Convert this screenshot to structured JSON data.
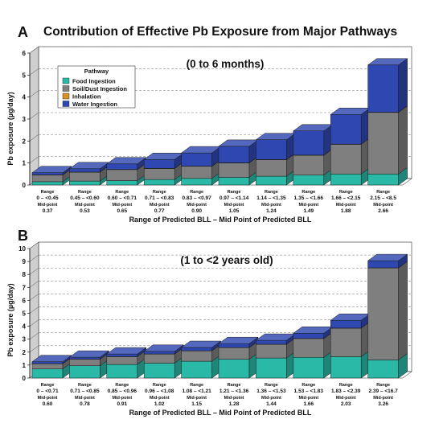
{
  "figure": {
    "title": "Contribution of Effective Pb Exposure from Major Pathways",
    "colors": {
      "food": "#2ab9a7",
      "soil": "#7f7f7f",
      "inhalation": "#d8902a",
      "water": "#2f47b0",
      "wall": "#cfcfcf"
    }
  },
  "legend": {
    "title": "Pathway",
    "items": [
      "Food Ingestion",
      "Soil/Dust Ingestion",
      "Inhalation",
      "Water Ingestion"
    ]
  },
  "chart_data": [
    {
      "type": "bar",
      "stacked": true,
      "panel_label": "A",
      "subtitle": "(0 to 6 months)",
      "xlabel": "Range of Predicted BLL – Mid Point of Predicted BLL",
      "ylabel": "Pb exposure (µg/day)",
      "ylim": [
        0,
        6
      ],
      "yticks": [
        0,
        1,
        2,
        3,
        4,
        5,
        6
      ],
      "grid": true,
      "range_label": "Range",
      "mid_label": "Mid-point",
      "categories": [
        "0 – <0.45",
        "0.45 – <0.60",
        "0.60 – <0.71",
        "0.71 – <0.83",
        "0.83 – <0.97",
        "0.97 – <1.14",
        "1.14 – <1.35",
        "1.35 – <1.66",
        "1.66 – <2.15",
        "2.15 – <8.5"
      ],
      "midpoints": [
        "0.37",
        "0.53",
        "0.65",
        "0.77",
        "0.90",
        "1.05",
        "1.24",
        "1.49",
        "1.88",
        "2.66"
      ],
      "series": [
        {
          "name": "Food Ingestion",
          "values": [
            0.15,
            0.18,
            0.2,
            0.25,
            0.3,
            0.35,
            0.4,
            0.45,
            0.5,
            0.5
          ]
        },
        {
          "name": "Soil/Dust Ingestion",
          "values": [
            0.3,
            0.4,
            0.5,
            0.5,
            0.55,
            0.65,
            0.75,
            0.9,
            1.35,
            2.8
          ]
        },
        {
          "name": "Inhalation",
          "values": [
            0.01,
            0.01,
            0.01,
            0.01,
            0.01,
            0.01,
            0.01,
            0.01,
            0.01,
            0.01
          ]
        },
        {
          "name": "Water Ingestion",
          "values": [
            0.1,
            0.15,
            0.25,
            0.4,
            0.6,
            0.75,
            0.9,
            1.1,
            1.35,
            2.15
          ]
        }
      ]
    },
    {
      "type": "bar",
      "stacked": true,
      "panel_label": "B",
      "subtitle": "(1 to <2 years old)",
      "xlabel": "Range of Predicted BLL – Mid Point of Predicted BLL",
      "ylabel": "Pb exposure (µg/day)",
      "ylim": [
        0,
        10
      ],
      "yticks": [
        0,
        1,
        2,
        3,
        4,
        5,
        6,
        7,
        8,
        9,
        10
      ],
      "grid": true,
      "range_label": "Range",
      "mid_label": "Mid-point",
      "categories": [
        "0 – <0.71",
        "0.71 – <0.85",
        "0.85 – <0.96",
        "0.96 – <1.08",
        "1.08 – <1.21",
        "1.21 – <1.36",
        "1.36 – <1.53",
        "1.53 – <1.83",
        "1.83 – <2.39",
        "2.39 – <16.7"
      ],
      "midpoints": [
        "0.60",
        "0.78",
        "0.91",
        "1.02",
        "1.15",
        "1.28",
        "1.44",
        "1.66",
        "2.03",
        "3.26"
      ],
      "series": [
        {
          "name": "Food Ingestion",
          "values": [
            0.7,
            0.95,
            1.05,
            1.15,
            1.3,
            1.45,
            1.55,
            1.6,
            1.65,
            1.4
          ]
        },
        {
          "name": "Soil/Dust Ingestion",
          "values": [
            0.4,
            0.5,
            0.6,
            0.7,
            0.8,
            0.9,
            1.05,
            1.45,
            2.2,
            7.1
          ]
        },
        {
          "name": "Inhalation",
          "values": [
            0.01,
            0.01,
            0.01,
            0.01,
            0.01,
            0.01,
            0.01,
            0.01,
            0.01,
            0.01
          ]
        },
        {
          "name": "Water Ingestion",
          "values": [
            0.15,
            0.15,
            0.2,
            0.2,
            0.25,
            0.3,
            0.3,
            0.4,
            0.6,
            0.55
          ]
        }
      ]
    }
  ]
}
